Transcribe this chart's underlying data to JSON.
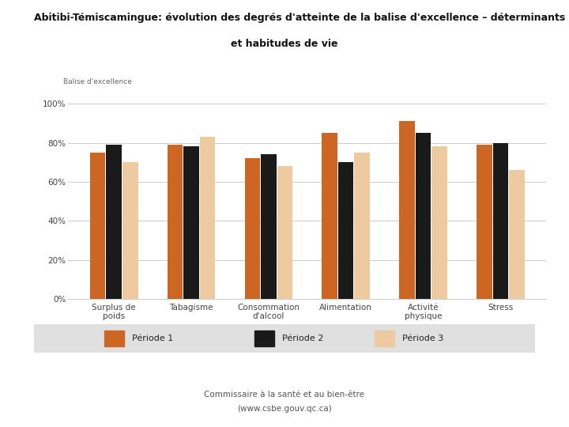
{
  "title_line1": "Abitibi-Témiscamingue: évolution des degrés d'atteinte de la balise d'excellence – déterminants",
  "title_line2": "et habitudes de vie",
  "ylabel": "Balise d'excellence",
  "categories": [
    "Surplus de\npoids",
    "Tabagisme",
    "Consommation\nd'alcool",
    "Alimentation",
    "Activité\nphysique",
    "Stress"
  ],
  "periode1": [
    0.75,
    0.79,
    0.72,
    0.85,
    0.91,
    0.79
  ],
  "periode2": [
    0.79,
    0.78,
    0.74,
    0.7,
    0.85,
    0.8
  ],
  "periode3": [
    0.7,
    0.83,
    0.68,
    0.75,
    0.78,
    0.66
  ],
  "color1": "#CC6622",
  "color2": "#1A1A1A",
  "color3": "#EDCAA0",
  "legend_labels": [
    "Période 1",
    "Période 2",
    "Période 3"
  ],
  "footer_line1": "Commissaire à la santé et au bien-être",
  "footer_line2": "(www.csbe.gouv.qc.ca)",
  "yticks": [
    0.0,
    0.2,
    0.4,
    0.6,
    0.8,
    1.0
  ],
  "ytick_labels": [
    "0%",
    "20%",
    "40%",
    "60%",
    "80%",
    "100%"
  ],
  "ylim": [
    0,
    1.05
  ],
  "background_color": "#ffffff",
  "grid_color": "#cccccc",
  "legend_bg": "#e0e0e0"
}
